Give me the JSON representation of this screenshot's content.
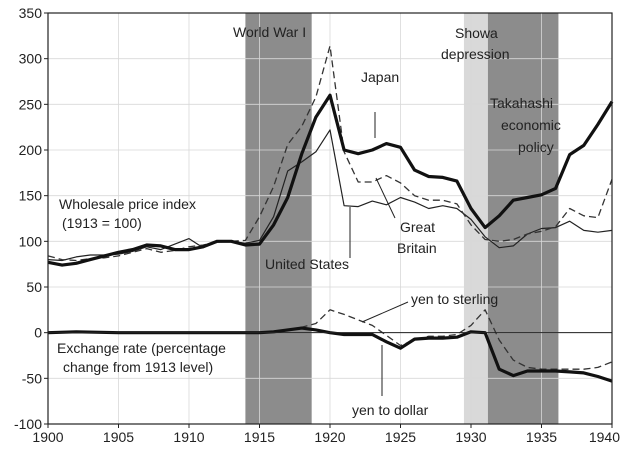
{
  "chart_data": {
    "type": "line",
    "title": "",
    "xlabel": "",
    "ylabel": "",
    "xlim": [
      1900,
      1940
    ],
    "ylim": [
      -100,
      350
    ],
    "x_ticks": [
      1900,
      1905,
      1910,
      1915,
      1920,
      1925,
      1930,
      1935,
      1940
    ],
    "y_ticks": [
      -100,
      -50,
      0,
      50,
      100,
      150,
      200,
      250,
      300,
      350
    ],
    "grid": true,
    "shaded_periods": [
      {
        "label": "World War I",
        "start": 1914,
        "end": 1918.7,
        "color": "#8c8c8c"
      },
      {
        "label": "Showa depression",
        "start": 1929.5,
        "end": 1931.2,
        "color": "#d9d9d9"
      },
      {
        "label": "Takahashi economic policy",
        "start": 1931.2,
        "end": 1936.2,
        "color": "#8c8c8c"
      }
    ],
    "series": [
      {
        "name": "Japan",
        "group": "Wholesale price index",
        "style": "thick",
        "x": [
          1900,
          1901,
          1902,
          1903,
          1904,
          1905,
          1906,
          1907,
          1908,
          1909,
          1910,
          1911,
          1912,
          1913,
          1914,
          1915,
          1916,
          1917,
          1918,
          1919,
          1920,
          1921,
          1922,
          1923,
          1924,
          1925,
          1926,
          1927,
          1928,
          1929,
          1930,
          1931,
          1932,
          1933,
          1934,
          1935,
          1936,
          1937,
          1938,
          1939,
          1940
        ],
        "values": [
          77,
          74,
          76,
          80,
          84,
          88,
          91,
          96,
          95,
          91,
          91,
          94,
          100,
          100,
          96,
          97,
          118,
          148,
          196,
          236,
          260,
          200,
          196,
          200,
          207,
          203,
          178,
          171,
          170,
          166,
          136,
          115,
          128,
          145,
          148,
          151,
          158,
          195,
          205,
          228,
          253
        ]
      },
      {
        "name": "Great Britain",
        "group": "Wholesale price index",
        "style": "dashed",
        "x": [
          1900,
          1901,
          1902,
          1903,
          1904,
          1905,
          1906,
          1907,
          1908,
          1909,
          1910,
          1911,
          1912,
          1913,
          1914,
          1915,
          1916,
          1917,
          1918,
          1919,
          1920,
          1921,
          1922,
          1923,
          1924,
          1925,
          1926,
          1927,
          1928,
          1929,
          1930,
          1931,
          1932,
          1933,
          1934,
          1935,
          1936,
          1937,
          1938,
          1939,
          1940
        ],
        "values": [
          84,
          80,
          79,
          81,
          82,
          84,
          88,
          92,
          88,
          90,
          94,
          96,
          99,
          100,
          101,
          127,
          160,
          206,
          226,
          258,
          314,
          198,
          165,
          165,
          172,
          164,
          150,
          145,
          145,
          141,
          118,
          102,
          100,
          102,
          108,
          111,
          116,
          136,
          128,
          126,
          168
        ]
      },
      {
        "name": "United States",
        "group": "Wholesale price index",
        "style": "thin",
        "x": [
          1900,
          1901,
          1902,
          1903,
          1904,
          1905,
          1906,
          1907,
          1908,
          1909,
          1910,
          1911,
          1912,
          1913,
          1914,
          1915,
          1916,
          1917,
          1918,
          1919,
          1920,
          1921,
          1922,
          1923,
          1924,
          1925,
          1926,
          1927,
          1928,
          1929,
          1930,
          1931,
          1932,
          1933,
          1934,
          1935,
          1936,
          1937,
          1938,
          1939,
          1940
        ],
        "values": [
          80,
          79,
          83,
          85,
          85,
          86,
          89,
          94,
          91,
          97,
          103,
          93,
          99,
          100,
          98,
          101,
          127,
          177,
          187,
          198,
          222,
          139,
          138,
          144,
          140,
          148,
          143,
          136,
          139,
          136,
          124,
          105,
          93,
          95,
          108,
          114,
          115,
          122,
          112,
          110,
          112
        ]
      },
      {
        "name": "yen to sterling",
        "group": "Exchange rate (percentage change from 1913 level)",
        "style": "dashed",
        "x": [
          1900,
          1905,
          1910,
          1913,
          1915,
          1916,
          1917,
          1918,
          1919,
          1920,
          1921,
          1922,
          1923,
          1924,
          1925,
          1926,
          1927,
          1928,
          1929,
          1930,
          1931,
          1932,
          1933,
          1934,
          1935,
          1936,
          1937,
          1938,
          1939,
          1940
        ],
        "values": [
          0,
          0,
          0,
          0,
          0,
          1,
          3,
          6,
          10,
          25,
          20,
          14,
          8,
          -3,
          -14,
          -8,
          -4,
          -4,
          -2,
          8,
          25,
          -8,
          -30,
          -38,
          -40,
          -40,
          -40,
          -40,
          -38,
          -32
        ]
      },
      {
        "name": "yen to dollar",
        "group": "Exchange rate (percentage change from 1913 level)",
        "style": "thick",
        "x": [
          1900,
          1902,
          1905,
          1910,
          1913,
          1915,
          1916,
          1917,
          1918,
          1919,
          1920,
          1921,
          1922,
          1923,
          1924,
          1925,
          1926,
          1927,
          1928,
          1929,
          1930,
          1931,
          1932,
          1933,
          1934,
          1935,
          1936,
          1937,
          1938,
          1939,
          1940
        ],
        "values": [
          0,
          1,
          0,
          0,
          0,
          0,
          1,
          3,
          5,
          3,
          0,
          -2,
          -2,
          -2,
          -10,
          -17,
          -7,
          -6,
          -6,
          -5,
          1,
          0,
          -40,
          -47,
          -42,
          -42,
          -42,
          -43,
          -44,
          -48,
          -53
        ]
      }
    ],
    "annotations": [
      {
        "text": "World War I"
      },
      {
        "text": "Showa"
      },
      {
        "text": "depression"
      },
      {
        "text": "Japan"
      },
      {
        "text": "Takahashi"
      },
      {
        "text": "economic"
      },
      {
        "text": "policy"
      },
      {
        "text": "Wholesale price index"
      },
      {
        "text": "(1913 = 100)"
      },
      {
        "text": "Great"
      },
      {
        "text": "Britain"
      },
      {
        "text": "United States"
      },
      {
        "text": "yen to sterling"
      },
      {
        "text": "Exchange rate (percentage"
      },
      {
        "text": "change from 1913 level)"
      },
      {
        "text": "yen to dollar"
      }
    ]
  }
}
